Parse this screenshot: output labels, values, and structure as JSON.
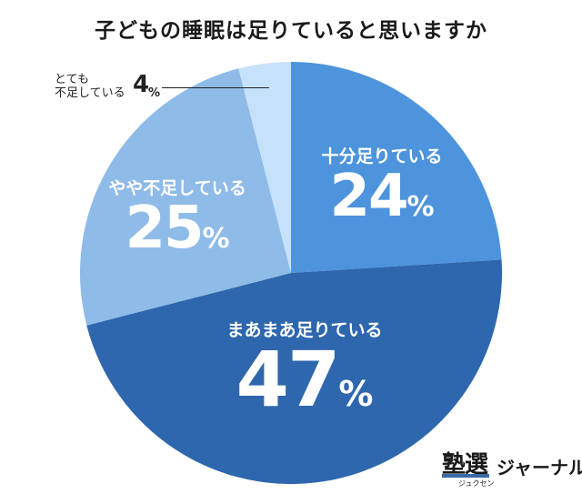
{
  "chart_data": {
    "type": "pie",
    "title": "子どもの睡眠は足りていると思いますか",
    "start": "top",
    "direction": "clockwise",
    "slices": [
      {
        "label": "十分足りている",
        "value": 24,
        "color": "#4d94dc"
      },
      {
        "label": "まあまあ足りている",
        "value": 47,
        "color": "#2e67ad"
      },
      {
        "label": "やや不足している",
        "value": 25,
        "color": "#8fbbe8"
      },
      {
        "label": "とても不足している",
        "label_lines": [
          "とても",
          "不足している"
        ],
        "value": 4,
        "color": "#c6e2fa"
      }
    ],
    "unit": "%"
  },
  "logo": {
    "kanji": "塾選",
    "ruby": "ジュクセン",
    "suffix": "ジャーナル"
  }
}
